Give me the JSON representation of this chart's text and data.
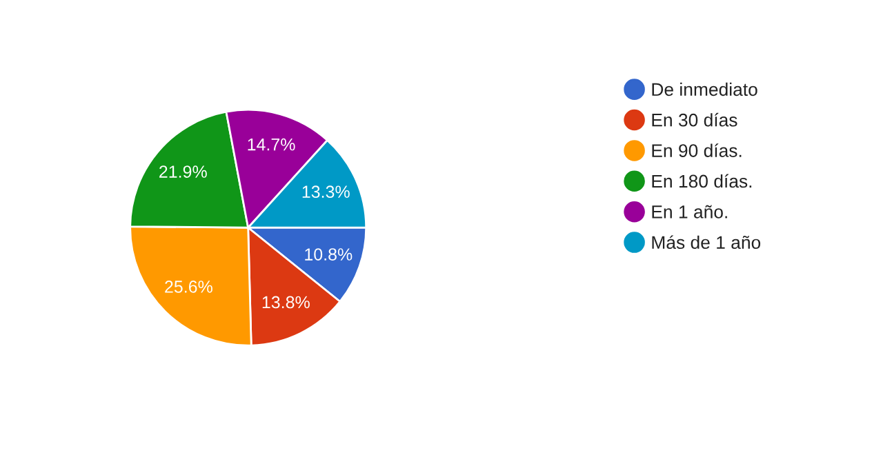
{
  "chart_data": {
    "type": "pie",
    "categories": [
      "De inmediato",
      "En 30 días",
      "En 90 días.",
      "En 180 días.",
      "En 1 año.",
      "Más de 1 año"
    ],
    "values": [
      10.8,
      13.8,
      25.6,
      21.9,
      14.7,
      13.3
    ],
    "colors": [
      "#3366cc",
      "#dc3912",
      "#ff9900",
      "#109618",
      "#990099",
      "#0099c6"
    ],
    "value_labels": [
      "10.8%",
      "13.8%",
      "25.6%",
      "21.9%",
      "14.7%",
      "13.3%"
    ],
    "legend": "right"
  }
}
